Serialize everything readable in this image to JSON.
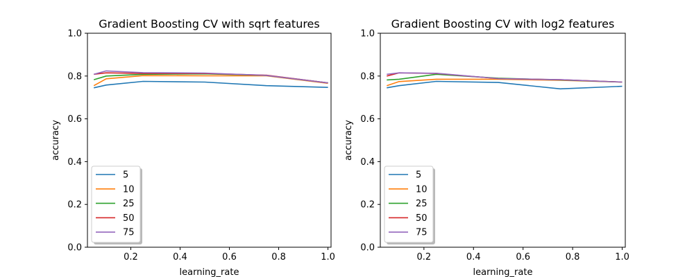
{
  "chart_data": [
    {
      "type": "line",
      "title": "Gradient Boosting CV with sqrt features",
      "xlabel": "learning_rate",
      "ylabel": "accuracy",
      "xlim": [
        0.0,
        1.0
      ],
      "ylim": [
        0.0,
        1.0
      ],
      "x": [
        0.05,
        0.1,
        0.25,
        0.5,
        0.75,
        1.0
      ],
      "x_ticks": [
        "0.2",
        "0.4",
        "0.6",
        "0.8",
        "1.0"
      ],
      "y_ticks": [
        "0.0",
        "0.2",
        "0.4",
        "0.6",
        "0.8",
        "1.0"
      ],
      "grid": false,
      "legend_placement": "lower-left",
      "series": [
        {
          "name": "5",
          "color": "#1f77b4",
          "values": [
            0.745,
            0.758,
            0.775,
            0.772,
            0.755,
            0.747
          ]
        },
        {
          "name": "10",
          "color": "#ff7f0e",
          "values": [
            0.755,
            0.787,
            0.802,
            0.801,
            0.801,
            0.766
          ]
        },
        {
          "name": "25",
          "color": "#2ca02c",
          "values": [
            0.783,
            0.8,
            0.808,
            0.81,
            0.803,
            0.768
          ]
        },
        {
          "name": "50",
          "color": "#d62728",
          "values": [
            0.808,
            0.815,
            0.812,
            0.812,
            0.804,
            0.768
          ]
        },
        {
          "name": "75",
          "color": "#9467bd",
          "values": [
            0.808,
            0.824,
            0.816,
            0.814,
            0.803,
            0.768
          ]
        }
      ]
    },
    {
      "type": "line",
      "title": "Gradient Boosting CV with log2 features",
      "xlabel": "learning_rate",
      "ylabel": "accuracy",
      "xlim": [
        0.0,
        1.0
      ],
      "ylim": [
        0.0,
        1.0
      ],
      "x": [
        0.05,
        0.1,
        0.25,
        0.5,
        0.75,
        1.0
      ],
      "x_ticks": [
        "0.2",
        "0.4",
        "0.6",
        "0.8",
        "1.0"
      ],
      "y_ticks": [
        "0.0",
        "0.2",
        "0.4",
        "0.6",
        "0.8",
        "1.0"
      ],
      "grid": false,
      "legend_placement": "lower-left",
      "series": [
        {
          "name": "5",
          "color": "#1f77b4",
          "values": [
            0.745,
            0.755,
            0.775,
            0.77,
            0.74,
            0.752
          ]
        },
        {
          "name": "10",
          "color": "#ff7f0e",
          "values": [
            0.755,
            0.774,
            0.785,
            0.785,
            0.78,
            0.772
          ]
        },
        {
          "name": "25",
          "color": "#2ca02c",
          "values": [
            0.782,
            0.785,
            0.808,
            0.79,
            0.782,
            0.772
          ]
        },
        {
          "name": "50",
          "color": "#d62728",
          "values": [
            0.8,
            0.815,
            0.812,
            0.788,
            0.783,
            0.772
          ]
        },
        {
          "name": "75",
          "color": "#9467bd",
          "values": [
            0.808,
            0.815,
            0.813,
            0.788,
            0.783,
            0.772
          ]
        }
      ]
    }
  ]
}
